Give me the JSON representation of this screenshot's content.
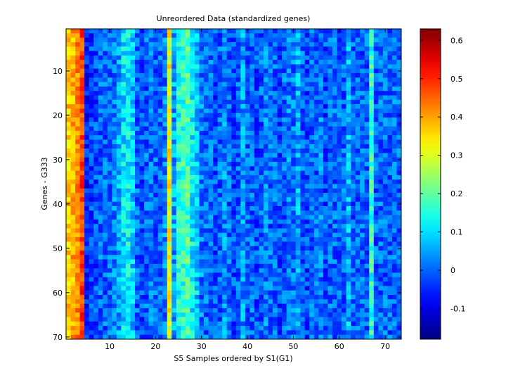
{
  "chart_data": {
    "type": "heatmap",
    "title": "Unreordered Data (standardized genes)",
    "xlabel": "S5 Samples ordered by S1(G1)",
    "ylabel": "Genes - G333",
    "x_range": [
      1,
      73
    ],
    "y_range": [
      1,
      70
    ],
    "y_reversed": true,
    "x_ticks": [
      10,
      20,
      30,
      40,
      50,
      60,
      70
    ],
    "y_ticks": [
      10,
      20,
      30,
      40,
      50,
      60,
      70
    ],
    "colormap": "jet",
    "clim": [
      -0.18,
      0.63
    ],
    "colorbar_ticks": [
      -0.1,
      0,
      0.1,
      0.2,
      0.3,
      0.4,
      0.5,
      0.6
    ],
    "grid": false,
    "column_profile": {
      "columns": [
        1,
        2,
        3,
        4,
        5,
        6,
        7,
        8,
        9,
        10,
        11,
        12,
        13,
        14,
        15,
        16,
        17,
        18,
        19,
        20,
        21,
        22,
        23,
        24,
        25,
        26,
        27,
        28,
        29,
        30,
        31,
        32,
        33,
        34,
        35,
        36,
        37,
        38,
        39,
        40,
        41,
        42,
        43,
        44,
        45,
        46,
        47,
        48,
        49,
        50,
        51,
        52,
        53,
        54,
        55,
        56,
        57,
        58,
        59,
        60,
        61,
        62,
        63,
        64,
        65,
        66,
        67,
        68,
        69,
        70,
        71,
        72,
        73
      ],
      "typical_value": [
        0.34,
        0.37,
        0.4,
        0.46,
        -0.05,
        -0.03,
        -0.02,
        0.0,
        0.0,
        0.01,
        0.02,
        0.05,
        0.1,
        0.12,
        0.08,
        0.0,
        -0.02,
        0.0,
        0.01,
        0.0,
        0.0,
        0.02,
        0.32,
        0.05,
        0.14,
        0.16,
        0.18,
        0.12,
        0.08,
        0.02,
        0.0,
        0.01,
        -0.02,
        0.0,
        0.03,
        0.0,
        -0.02,
        0.0,
        0.04,
        0.0,
        0.0,
        -0.02,
        0.0,
        0.02,
        0.0,
        0.0,
        -0.02,
        0.0,
        0.02,
        0.01,
        0.05,
        0.0,
        -0.02,
        0.0,
        0.0,
        0.02,
        -0.02,
        0.0,
        0.0,
        0.0,
        0.0,
        0.06,
        0.0,
        0.0,
        0.0,
        0.0,
        0.16,
        0.0,
        0.0,
        0.0,
        0.0,
        0.0,
        0.0
      ]
    }
  }
}
